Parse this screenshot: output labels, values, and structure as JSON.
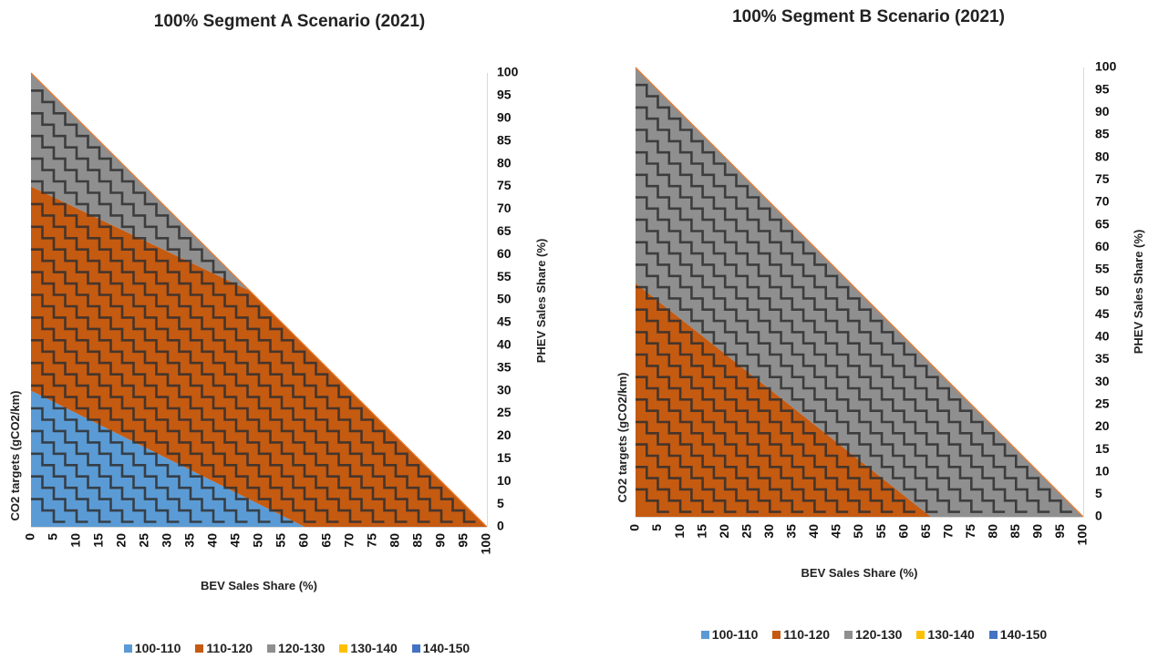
{
  "chart_data": [
    {
      "type": "area",
      "title": "100% Segment A Scenario (2021)",
      "xlabel": "BEV Sales Share (%)",
      "ylabel_left": "CO2 targets (gCO2/km)",
      "ylabel_right": "PHEV Sales Share (%)",
      "xlim": [
        0,
        100
      ],
      "ylim": [
        0,
        100
      ],
      "x_ticks": [
        "0",
        "5",
        "10",
        "15",
        "20",
        "25",
        "30",
        "35",
        "40",
        "45",
        "50",
        "55",
        "60",
        "65",
        "70",
        "75",
        "80",
        "85",
        "90",
        "95",
        "100"
      ],
      "y_ticks": [
        "0",
        "5",
        "10",
        "15",
        "20",
        "25",
        "30",
        "35",
        "40",
        "45",
        "50",
        "55",
        "60",
        "65",
        "70",
        "75",
        "80",
        "85",
        "90",
        "95",
        "100"
      ],
      "feasible_region": "BEV + PHEV <= 100",
      "bands": [
        {
          "range": "100-110",
          "bev_plus_phev_from": 0,
          "bev_plus_phev_to": 60
        },
        {
          "range": "110-120",
          "bev_plus_phev_from": 60,
          "bev_plus_phev_to": 100,
          "phev_from": 30,
          "phev_to": 75
        },
        {
          "range": "120-130",
          "phev_from": 75,
          "phev_to": 100
        }
      ],
      "region_boundaries": [
        {
          "from": {
            "bev": 0,
            "phev": 30
          },
          "to": {
            "bev": 60,
            "phev": 0
          }
        },
        {
          "from": {
            "bev": 0,
            "phev": 75
          },
          "to": {
            "bev": 48,
            "phev": 52
          }
        }
      ],
      "legend": [
        "100-110",
        "110-120",
        "120-130",
        "130-140",
        "140-150"
      ],
      "legend_position": "bottom"
    },
    {
      "type": "area",
      "title": "100% Segment B Scenario (2021)",
      "xlabel": "BEV Sales Share (%)",
      "ylabel_left": "CO2 targets (gCO2/km)",
      "ylabel_right": "PHEV Sales Share (%)",
      "xlim": [
        0,
        100
      ],
      "ylim": [
        0,
        100
      ],
      "x_ticks": [
        "0",
        "5",
        "10",
        "15",
        "20",
        "25",
        "30",
        "35",
        "40",
        "45",
        "50",
        "55",
        "60",
        "65",
        "70",
        "75",
        "80",
        "85",
        "90",
        "95",
        "100"
      ],
      "y_ticks": [
        "0",
        "5",
        "10",
        "15",
        "20",
        "25",
        "30",
        "35",
        "40",
        "45",
        "50",
        "55",
        "60",
        "65",
        "70",
        "75",
        "80",
        "85",
        "90",
        "95",
        "100"
      ],
      "feasible_region": "BEV + PHEV <= 100",
      "bands": [
        {
          "range": "110-120",
          "bev_plus_phev_from": 0,
          "bev_plus_phev_to": 66
        },
        {
          "range": "120-130",
          "bev_plus_phev_from": 66,
          "bev_plus_phev_to": 100
        }
      ],
      "region_boundaries": [
        {
          "from": {
            "bev": 0,
            "phev": 52
          },
          "to": {
            "bev": 66,
            "phev": 0
          }
        }
      ],
      "legend": [
        "100-110",
        "110-120",
        "120-130",
        "130-140",
        "140-150"
      ],
      "legend_position": "bottom"
    }
  ],
  "colors": {
    "100-110": "#5b9bd5",
    "110-120": "#c55a11",
    "120-130": "#8f8f8f",
    "130-140": "#ffc000",
    "140-150": "#4472c4",
    "hypotenuse": "#ed7d31",
    "contour": "#2f2f2f"
  }
}
